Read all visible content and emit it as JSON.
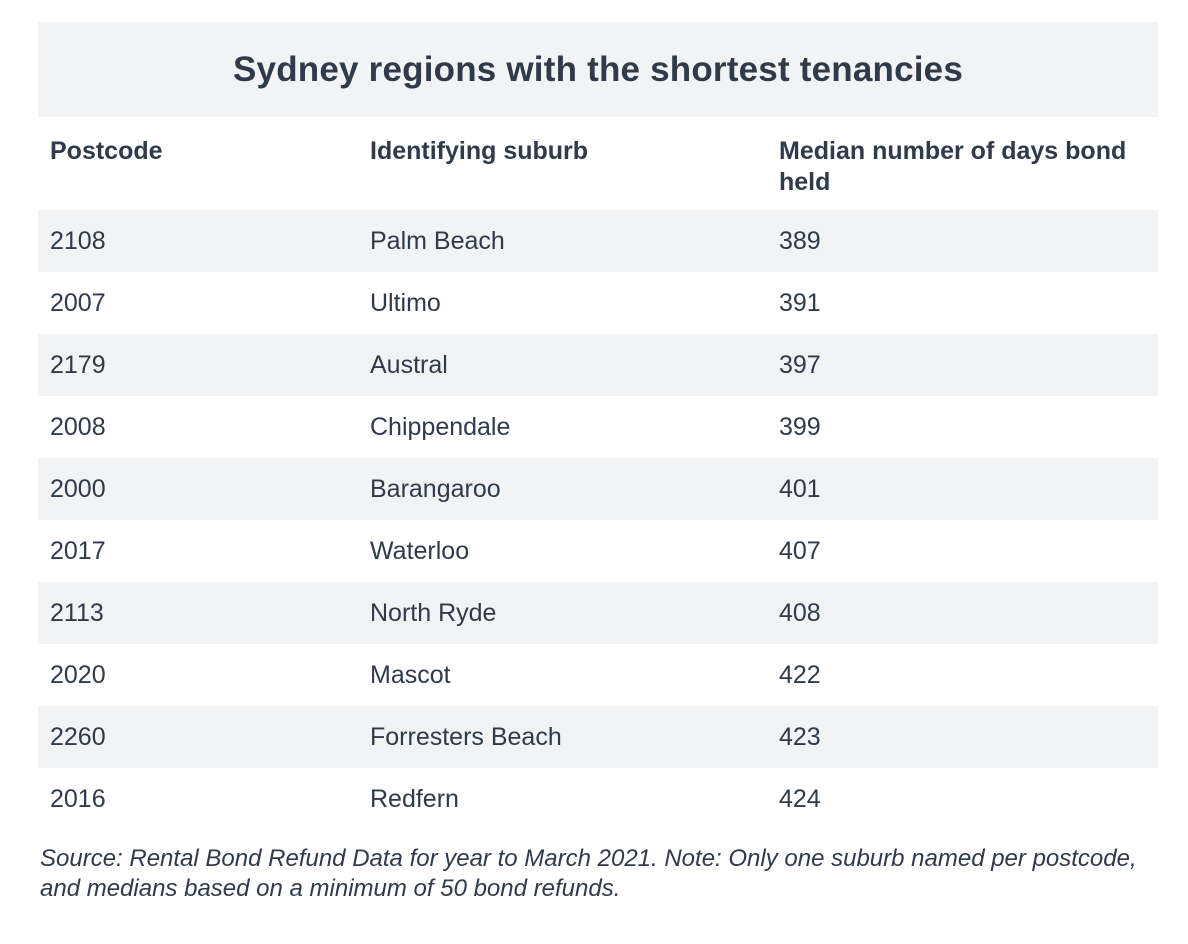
{
  "title": "Sydney regions with the shortest tenancies",
  "headers": {
    "postcode": "Postcode",
    "suburb": "Identifying suburb",
    "median": "Median number of days bond held"
  },
  "rows": [
    {
      "postcode": "2108",
      "suburb": "Palm Beach",
      "median": "389"
    },
    {
      "postcode": "2007",
      "suburb": "Ultimo",
      "median": "391"
    },
    {
      "postcode": "2179",
      "suburb": "Austral",
      "median": "397"
    },
    {
      "postcode": "2008",
      "suburb": "Chippendale",
      "median": "399"
    },
    {
      "postcode": "2000",
      "suburb": "Barangaroo",
      "median": "401"
    },
    {
      "postcode": "2017",
      "suburb": "Waterloo",
      "median": "407"
    },
    {
      "postcode": "2113",
      "suburb": "North Ryde",
      "median": "408"
    },
    {
      "postcode": "2020",
      "suburb": "Mascot",
      "median": "422"
    },
    {
      "postcode": "2260",
      "suburb": "Forresters Beach",
      "median": "423"
    },
    {
      "postcode": "2016",
      "suburb": "Redfern",
      "median": "424"
    }
  ],
  "note": "Source: Rental Bond Refund Data for year to March 2021. Note: Only one suburb named per postcode, and medians based on a minimum of 50 bond refunds.",
  "colors": {
    "text": "#2f3a4a",
    "shade": "#f1f3f5"
  }
}
